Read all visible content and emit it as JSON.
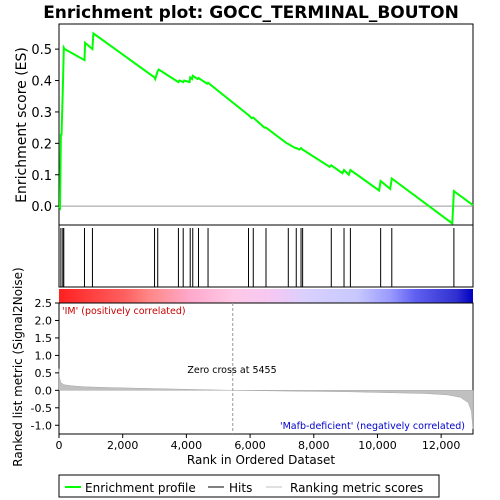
{
  "chart_data": {
    "type": "line",
    "title": "Enrichment plot: GOCC_TERMINAL_BOUTON",
    "top_panel": {
      "ylabel": "Enrichment score (ES)",
      "ylim": [
        -0.06,
        0.58
      ],
      "yticks": [
        0.0,
        0.1,
        0.2,
        0.3,
        0.4,
        0.5
      ],
      "ytick_labels": [
        "0.0",
        "0.1",
        "0.2",
        "0.3",
        "0.4",
        "0.5"
      ],
      "series": [
        {
          "name": "Enrichment profile",
          "color": "#00ff00",
          "x": [
            0,
            30,
            60,
            80,
            120,
            150,
            180,
            800,
            820,
            1050,
            1080,
            3000,
            3020,
            3100,
            3130,
            3750,
            3780,
            3900,
            3930,
            4100,
            4120,
            4180,
            4200,
            4350,
            4380,
            4650,
            4680,
            5950,
            6000,
            6050,
            6100,
            6450,
            6500,
            7150,
            7200,
            7400,
            7450,
            7550,
            7600,
            7650,
            8500,
            8550,
            8900,
            8950,
            9100,
            9150,
            10050,
            10100,
            10400,
            10450,
            12350,
            12400,
            13000
          ],
          "y": [
            0.0,
            -0.005,
            0.23,
            0.225,
            0.37,
            0.505,
            0.5,
            0.465,
            0.52,
            0.5,
            0.55,
            0.41,
            0.405,
            0.43,
            0.435,
            0.395,
            0.4,
            0.395,
            0.4,
            0.395,
            0.41,
            0.405,
            0.415,
            0.405,
            0.408,
            0.39,
            0.393,
            0.29,
            0.285,
            0.28,
            0.282,
            0.25,
            0.25,
            0.2,
            0.198,
            0.186,
            0.185,
            0.18,
            0.185,
            0.18,
            0.125,
            0.13,
            0.105,
            0.115,
            0.1,
            0.115,
            0.05,
            0.08,
            0.055,
            0.088,
            -0.055,
            0.048,
            0.003
          ]
        }
      ],
      "hits_title": "Hits",
      "hit_positions": [
        60,
        120,
        150,
        800,
        1050,
        3000,
        3100,
        3750,
        3900,
        4120,
        4200,
        4380,
        4680,
        5950,
        6100,
        6500,
        7200,
        7450,
        7600,
        7650,
        8550,
        8950,
        9150,
        10100,
        10450,
        12400
      ]
    },
    "colorbar": {
      "left_color": "#ff0000",
      "right_color": "#0000ff"
    },
    "bottom_panel": {
      "ylabel": "Ranked list metric (Signal2Noise)",
      "xlabel": "Rank in Ordered Dataset",
      "ylim": [
        -1.25,
        2.5
      ],
      "yticks": [
        -1.0,
        -0.5,
        0.0,
        0.5,
        1.0,
        1.5,
        2.0,
        2.5
      ],
      "ytick_labels": [
        "-1.0",
        "-0.5",
        "0.0",
        "0.5",
        "1.0",
        "1.5",
        "2.0",
        "2.5"
      ],
      "xlim": [
        0,
        13000
      ],
      "xticks": [
        0,
        2000,
        4000,
        6000,
        8000,
        10000,
        12000
      ],
      "xtick_labels": [
        "0",
        "2,000",
        "4,000",
        "6,000",
        "8,000",
        "10,000",
        "12,000"
      ],
      "zero_cross_rank": 5455,
      "zero_cross_label": "Zero cross at 5455",
      "positive_label": "'IM' (positively correlated)",
      "negative_label": "'Mafb-deficient' (negatively correlated)",
      "metric_profile": {
        "x": [
          0,
          20,
          60,
          150,
          400,
          800,
          1500,
          3000,
          5455,
          7000,
          9000,
          10500,
          11500,
          12200,
          12600,
          12850,
          12950,
          12990,
          13000
        ],
        "y": [
          0.62,
          0.35,
          0.22,
          0.16,
          0.13,
          0.1,
          0.08,
          0.05,
          0.0,
          -0.02,
          -0.04,
          -0.07,
          -0.09,
          -0.13,
          -0.2,
          -0.35,
          -0.6,
          -1.05,
          -1.1
        ]
      }
    },
    "legend": {
      "entries": [
        {
          "label": "Enrichment profile",
          "color": "#00ff00",
          "style": "line"
        },
        {
          "label": "Hits",
          "color": "#000000",
          "style": "line"
        },
        {
          "label": "Ranking metric scores",
          "color": "#c0c0c0",
          "style": "line"
        }
      ]
    }
  }
}
